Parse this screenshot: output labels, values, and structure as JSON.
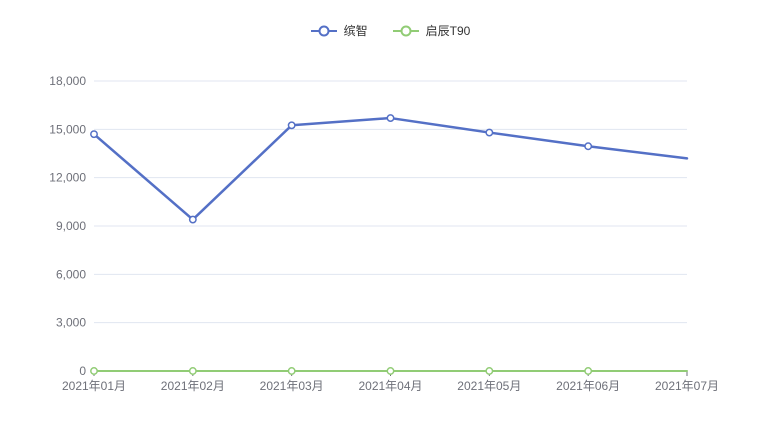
{
  "chart_data": {
    "type": "line",
    "title": "",
    "xlabel": "",
    "ylabel": "",
    "x": [
      "2021年01月",
      "2021年02月",
      "2021年03月",
      "2021年04月",
      "2021年05月",
      "2021年06月",
      "2021年07月"
    ],
    "series": [
      {
        "name": "缤智",
        "color": "#5470c6",
        "values": [
          14700,
          9400,
          15250,
          15700,
          14800,
          13950,
          13200
        ]
      },
      {
        "name": "启辰T90",
        "color": "#91cc75",
        "values": [
          0,
          0,
          0,
          0,
          0,
          0,
          0
        ]
      }
    ],
    "ylim": [
      0,
      18000
    ],
    "yticks": [
      {
        "value": 0,
        "label": "0"
      },
      {
        "value": 3000,
        "label": "3,000"
      },
      {
        "value": 6000,
        "label": "6,000"
      },
      {
        "value": 9000,
        "label": "9,000"
      },
      {
        "value": 12000,
        "label": "12,000"
      },
      {
        "value": 15000,
        "label": "15,000"
      },
      {
        "value": 18000,
        "label": "18,000"
      }
    ],
    "grid": true,
    "legend_position": "top-center",
    "marker_style": "hollow-circle",
    "markers_hidden_on_last_point": true
  },
  "colors": {
    "background": "#ffffff",
    "grid": "#e0e6f1",
    "axis_line": "#6e7079",
    "axis_label": "#6e7079",
    "legend_text": "#333333",
    "marker_fill": "#ffffff"
  }
}
